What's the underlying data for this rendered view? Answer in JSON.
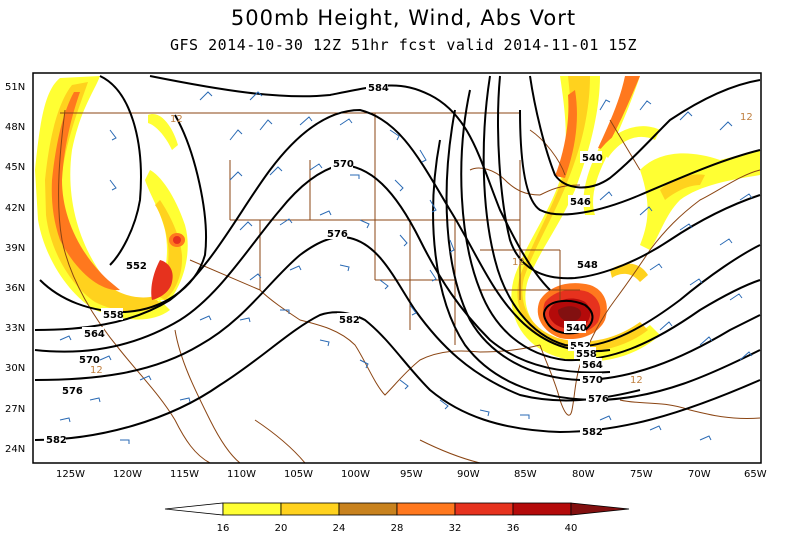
{
  "title": "500mb Height, Wind, Abs Vort",
  "subtitle": "GFS 2014-10-30 12Z 51hr fcst valid 2014-11-01 15Z",
  "lat_labels": [
    "51N",
    "48N",
    "45N",
    "42N",
    "39N",
    "36N",
    "33N",
    "30N",
    "27N",
    "24N"
  ],
  "lon_labels": [
    "125W",
    "120W",
    "115W",
    "110W",
    "105W",
    "100W",
    "95W",
    "90W",
    "85W",
    "80W",
    "75W",
    "70W",
    "65W"
  ],
  "height_contour_labels": [
    "584",
    "570",
    "576",
    "582",
    "552",
    "558",
    "564",
    "570",
    "576",
    "582",
    "540",
    "546",
    "548",
    "540",
    "552",
    "558",
    "564",
    "570",
    "576",
    "582"
  ],
  "vorticity_labels": [
    "12",
    "12",
    "12",
    "12",
    "12"
  ],
  "colorbar": {
    "labels": [
      "16",
      "20",
      "24",
      "28",
      "32",
      "36",
      "40"
    ],
    "colors": [
      "#ffffff",
      "#ffff33",
      "#ffd21e",
      "#c8821e",
      "#ff781e",
      "#e6321e",
      "#b40a0a",
      "#821010"
    ]
  },
  "colors": {
    "coast": "#8b4513",
    "contour": "#000000",
    "wind_barb": "#2a6ab4",
    "vort_contour": "#c08040"
  }
}
